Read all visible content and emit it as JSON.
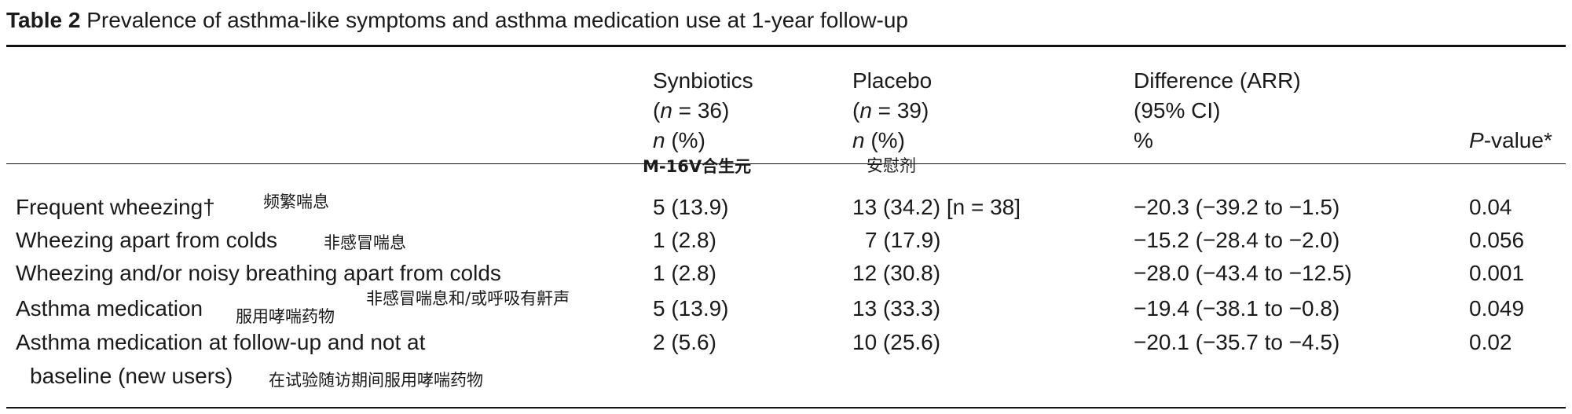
{
  "caption": {
    "label": "Table 2",
    "title": "Prevalence of asthma-like symptoms and asthma medication use at 1-year follow-up"
  },
  "columns": {
    "synbiotics": {
      "name": "Synbiotics",
      "n_var": "n",
      "n_rest": " = 36)",
      "unit_var": "n",
      "unit_rest": " (%)"
    },
    "placebo": {
      "name": "Placebo",
      "n_var": "n",
      "n_rest": " = 39)",
      "unit_var": "n",
      "unit_rest": " (%)"
    },
    "difference": {
      "name": "Difference (ARR)",
      "ci": "(95% CI)",
      "unit": "%"
    },
    "pvalue": {
      "var": "P",
      "rest": "-value*"
    }
  },
  "header_annotations": {
    "synbiotics": "M-16V合生元",
    "placebo": "安慰剂"
  },
  "rows": [
    {
      "label": "Frequent wheezing†",
      "annotation": "频繁喘息",
      "synbiotics": "5 (13.9)",
      "placebo": "13 (34.2) [n = 38]",
      "difference": "−20.3 (−39.2 to −1.5)",
      "pvalue": "0.04"
    },
    {
      "label": "Wheezing apart from colds",
      "annotation": "非感冒喘息",
      "synbiotics": "1 (2.8)",
      "placebo": "7 (17.9)",
      "difference": "−15.2 (−28.4 to −2.0)",
      "pvalue": "0.056"
    },
    {
      "label": "Wheezing and/or noisy breathing apart from colds",
      "annotation": "",
      "synbiotics": "1 (2.8)",
      "placebo": "12 (30.8)",
      "difference": "−28.0 (−43.4 to −12.5)",
      "pvalue": "0.001"
    },
    {
      "label": "Asthma medication",
      "annotation": "服用哮喘药物",
      "annotation_above": "非感冒喘息和/或呼吸有鼾声",
      "synbiotics": "5 (13.9)",
      "placebo": "13 (33.3)",
      "difference": "−19.4 (−38.1 to −0.8)",
      "pvalue": "0.049"
    },
    {
      "label": "Asthma medication at follow-up and not at",
      "label_cont": "baseline (new users)",
      "annotation": "在试验随访期间服用哮喘药物",
      "synbiotics": "2 (5.6)",
      "placebo": "10 (25.6)",
      "difference": "−20.1 (−35.7 to −4.5)",
      "pvalue": "0.02"
    }
  ]
}
